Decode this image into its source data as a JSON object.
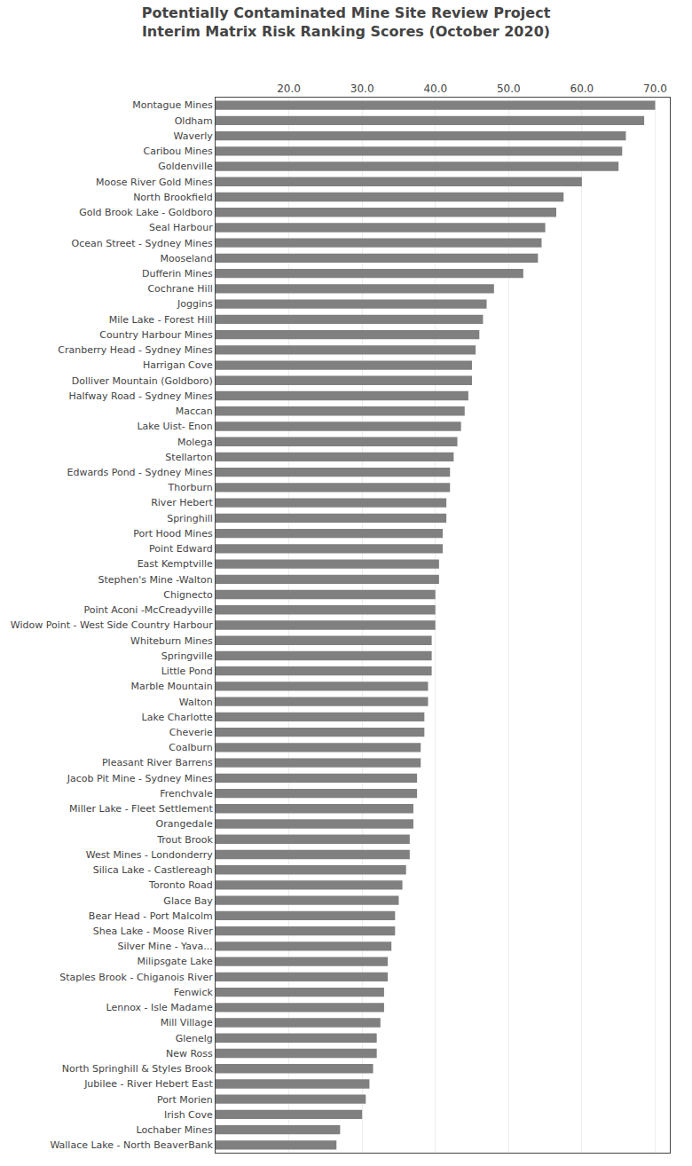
{
  "chart_data": {
    "type": "bar",
    "orientation": "horizontal",
    "title": "Potentially Contaminated Mine Site Review Project\nInterim Matrix Risk Ranking Scores (October 2020)",
    "categories": [
      "Montague Mines",
      "Oldham",
      "Waverly",
      "Caribou Mines",
      "Goldenville",
      "Moose River Gold Mines",
      "North Brookfield",
      "Gold Brook Lake - Goldboro",
      "Seal Harbour",
      "Ocean Street - Sydney Mines",
      "Mooseland",
      "Dufferin Mines",
      "Cochrane Hill",
      "Joggins",
      "Mile Lake - Forest Hill",
      "Country Harbour Mines",
      "Cranberry Head - Sydney Mines",
      "Harrigan Cove",
      "Dolliver Mountain (Goldboro)",
      "Halfway Road - Sydney Mines",
      "Maccan",
      "Lake Uist- Enon",
      "Molega",
      "Stellarton",
      "Edwards Pond - Sydney Mines",
      "Thorburn",
      "River Hebert",
      "Springhill",
      "Port Hood Mines",
      "Point Edward",
      "East Kemptville",
      "Stephen's Mine -Walton",
      "Chignecto",
      "Point Aconi -McCreadyville",
      "Widow Point - West Side Country Harbour",
      "Whiteburn Mines",
      "Springville",
      "Little Pond",
      "Marble Mountain",
      "Walton",
      "Lake Charlotte",
      "Cheverie",
      "Coalburn",
      "Pleasant River Barrens",
      "Jacob Pit Mine - Sydney Mines",
      "Frenchvale",
      "Miller Lake - Fleet Settlement",
      "Orangedale",
      "Trout Brook",
      "West Mines - Londonderry",
      "Silica Lake - Castlereagh",
      "Toronto Road",
      "Glace Bay",
      "Bear Head - Port Malcolm",
      "Shea Lake - Moose River",
      "Silver Mine - Yava...",
      "Milipsgate Lake",
      "Staples Brook - Chiganois River",
      "Fenwick",
      "Lennox - Isle Madame",
      "Mill Village",
      "Glenelg",
      "New Ross",
      "North Springhill & Styles Brook",
      "Jubilee - River Hebert East",
      "Port Morien",
      "Irish Cove",
      "Lochaber Mines",
      "Wallace Lake - North BeaverBank"
    ],
    "values": [
      70.0,
      68.5,
      66.0,
      65.5,
      65.0,
      60.0,
      57.5,
      56.5,
      55.0,
      54.5,
      54.0,
      52.0,
      48.0,
      47.0,
      46.5,
      46.0,
      45.5,
      45.0,
      45.0,
      44.5,
      44.0,
      43.5,
      43.0,
      42.5,
      42.0,
      42.0,
      41.5,
      41.5,
      41.0,
      41.0,
      40.5,
      40.5,
      40.0,
      40.0,
      40.0,
      39.5,
      39.5,
      39.5,
      39.0,
      39.0,
      38.5,
      38.5,
      38.0,
      38.0,
      37.5,
      37.5,
      37.0,
      37.0,
      36.5,
      36.5,
      36.0,
      35.5,
      35.0,
      34.5,
      34.5,
      34.0,
      33.5,
      33.5,
      33.0,
      33.0,
      32.5,
      32.0,
      32.0,
      31.5,
      31.0,
      30.5,
      30.0,
      27.0,
      26.5
    ],
    "color": "#808080",
    "xlim": [
      10.0,
      72.0
    ],
    "xticks": [
      {
        "value": 20.0,
        "label": "20.0"
      },
      {
        "value": 30.0,
        "label": "30.0"
      },
      {
        "value": 40.0,
        "label": "40.0"
      },
      {
        "value": 50.0,
        "label": "50.0"
      },
      {
        "value": 60.0,
        "label": "60.0"
      },
      {
        "value": 70.0,
        "label": "70.0"
      }
    ],
    "grid": true
  }
}
